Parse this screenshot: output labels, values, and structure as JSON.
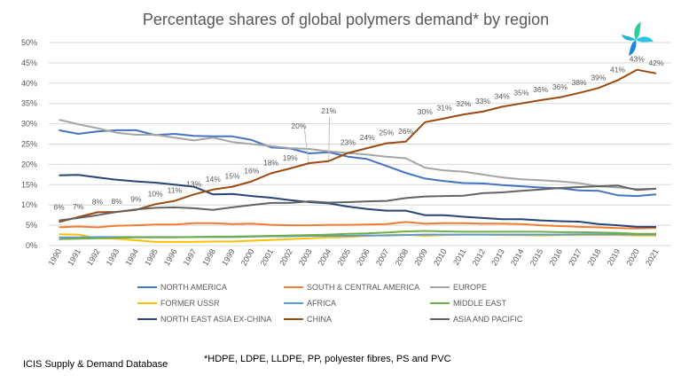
{
  "chart_data": {
    "type": "line",
    "title": "Percentage shares of global polymers demand* by region",
    "xlabel": "",
    "ylabel": "",
    "ylim": [
      0,
      50
    ],
    "yticks": [
      "0%",
      "5%",
      "10%",
      "15%",
      "20%",
      "25%",
      "30%",
      "35%",
      "40%",
      "45%",
      "50%"
    ],
    "grid": true,
    "legend_placement": "bottom",
    "x": [
      1990,
      1991,
      1992,
      1993,
      1994,
      1995,
      1996,
      1997,
      1998,
      1999,
      2000,
      2001,
      2002,
      2003,
      2004,
      2005,
      2006,
      2007,
      2008,
      2009,
      2010,
      2011,
      2012,
      2013,
      2014,
      2015,
      2016,
      2017,
      2018,
      2019,
      2020,
      2021
    ],
    "series": [
      {
        "name": "NORTH AMERICA",
        "color": "#4472C4",
        "values": [
          28.4,
          27.5,
          28.1,
          28.4,
          28.4,
          27.2,
          27.5,
          27.0,
          26.9,
          26.9,
          26.0,
          24.2,
          23.9,
          22.7,
          23.0,
          21.9,
          21.3,
          19.6,
          17.9,
          16.5,
          15.9,
          15.4,
          15.3,
          14.9,
          14.6,
          14.3,
          14.1,
          13.6,
          13.5,
          12.4,
          12.2,
          12.6
        ]
      },
      {
        "name": "SOUTH & CENTRAL AMERICA",
        "color": "#ED7D31",
        "values": [
          4.5,
          4.7,
          4.5,
          4.9,
          5.0,
          5.2,
          5.2,
          5.5,
          5.5,
          5.3,
          5.4,
          5.1,
          5.0,
          5.0,
          5.1,
          5.1,
          5.2,
          5.3,
          5.8,
          5.4,
          5.5,
          5.5,
          5.4,
          5.4,
          5.3,
          5.0,
          4.8,
          4.6,
          4.5,
          4.3,
          4.2,
          4.3
        ]
      },
      {
        "name": "EUROPE",
        "color": "#A5A5A5",
        "values": [
          31.0,
          29.9,
          28.9,
          27.8,
          27.3,
          27.3,
          26.6,
          25.9,
          26.6,
          25.5,
          25.0,
          24.5,
          24.0,
          23.8,
          23.2,
          22.8,
          22.4,
          21.9,
          21.5,
          19.2,
          18.5,
          18.2,
          17.5,
          16.8,
          16.3,
          16.1,
          15.8,
          15.4,
          14.6,
          14.3,
          13.9,
          14.0
        ]
      },
      {
        "name": "FORMER USSR",
        "color": "#FFC000",
        "values": [
          2.8,
          2.7,
          1.8,
          1.7,
          1.3,
          0.9,
          0.9,
          0.9,
          1.0,
          1.0,
          1.2,
          1.4,
          1.6,
          1.8,
          2.0,
          2.1,
          2.4,
          2.6,
          2.7,
          2.4,
          2.6,
          2.7,
          2.7,
          2.6,
          2.6,
          2.5,
          2.6,
          2.6,
          2.6,
          2.6,
          2.5,
          2.5
        ]
      },
      {
        "name": "AFRICA",
        "color": "#5B9BD5",
        "values": [
          2.0,
          2.0,
          2.1,
          2.1,
          2.1,
          2.1,
          2.1,
          2.1,
          2.1,
          2.1,
          2.2,
          2.3,
          2.3,
          2.4,
          2.4,
          2.4,
          2.5,
          2.5,
          2.6,
          2.7,
          2.7,
          2.7,
          2.7,
          2.7,
          2.7,
          2.7,
          2.7,
          2.8,
          2.8,
          2.8,
          2.7,
          2.7
        ]
      },
      {
        "name": "MIDDLE EAST",
        "color": "#70AD47",
        "values": [
          1.6,
          1.7,
          1.8,
          1.9,
          2.0,
          2.0,
          2.0,
          2.1,
          2.2,
          2.2,
          2.3,
          2.4,
          2.5,
          2.6,
          2.7,
          2.9,
          3.0,
          3.2,
          3.5,
          3.6,
          3.5,
          3.4,
          3.4,
          3.4,
          3.4,
          3.4,
          3.3,
          3.3,
          3.2,
          3.1,
          2.9,
          2.9
        ]
      },
      {
        "name": "NORTH EAST ASIA EX-CHINA",
        "color": "#264478",
        "values": [
          17.3,
          17.4,
          16.8,
          16.2,
          15.8,
          15.5,
          15.0,
          14.5,
          12.6,
          12.7,
          12.2,
          11.8,
          11.2,
          10.7,
          10.4,
          9.6,
          9.0,
          8.6,
          8.6,
          7.5,
          7.5,
          7.1,
          6.8,
          6.5,
          6.5,
          6.2,
          6.0,
          5.9,
          5.3,
          5.0,
          4.6,
          4.6
        ]
      },
      {
        "name": "CHINA",
        "color": "#9E480E",
        "values": [
          5.8,
          7.0,
          8.2,
          8.3,
          8.8,
          10.2,
          11.0,
          12.6,
          13.8,
          14.5,
          15.8,
          17.8,
          19.0,
          20.3,
          20.8,
          22.8,
          24.0,
          25.2,
          25.6,
          30.4,
          31.3,
          32.3,
          33.0,
          34.2,
          35.0,
          35.8,
          36.5,
          37.6,
          38.8,
          40.7,
          43.3,
          42.4
        ],
        "data_labels": [
          "6%",
          "7%",
          "8%",
          "8%",
          "9%",
          "10%",
          "11%",
          "13%",
          "14%",
          "15%",
          "16%",
          "18%",
          "19%",
          "20%",
          "21%",
          "23%",
          "24%",
          "25%",
          "26%",
          "30%",
          "31%",
          "32%",
          "33%",
          "34%",
          "35%",
          "36%",
          "36%",
          "38%",
          "39%",
          "41%",
          "43%",
          "42%"
        ]
      },
      {
        "name": "ASIA AND PACIFIC",
        "color": "#636363",
        "values": [
          6.2,
          6.8,
          7.5,
          8.3,
          8.9,
          9.3,
          9.4,
          9.2,
          8.8,
          9.4,
          10.0,
          10.5,
          10.5,
          10.9,
          10.6,
          10.7,
          10.9,
          11.0,
          11.7,
          12.1,
          12.2,
          12.3,
          12.9,
          13.1,
          13.5,
          13.8,
          14.2,
          14.4,
          14.6,
          14.8,
          13.7,
          14.0
        ]
      }
    ]
  },
  "footer": {
    "source": "ICIS Supply & Demand Database",
    "note": "*HDPE, LDPE, LLDPE, PP, polyester fibres, PS and PVC"
  },
  "logo": {
    "name": "icis-logo-icon"
  }
}
